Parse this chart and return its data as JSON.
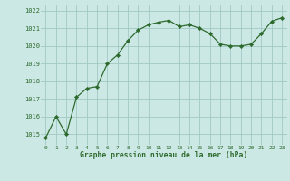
{
  "x": [
    0,
    1,
    2,
    3,
    4,
    5,
    6,
    7,
    8,
    9,
    10,
    11,
    12,
    13,
    14,
    15,
    16,
    17,
    18,
    19,
    20,
    21,
    22,
    23
  ],
  "y": [
    1014.8,
    1016.0,
    1015.0,
    1017.1,
    1017.6,
    1017.7,
    1019.0,
    1019.5,
    1020.3,
    1020.9,
    1021.2,
    1021.35,
    1021.45,
    1021.1,
    1021.2,
    1021.0,
    1020.7,
    1020.1,
    1020.0,
    1020.0,
    1020.1,
    1020.7,
    1021.4,
    1021.6
  ],
  "line_color": "#2d6a2d",
  "marker_color": "#2d6a2d",
  "bg_color": "#cce8e4",
  "grid_color": "#a0c8c4",
  "xlabel": "Graphe pression niveau de la mer (hPa)",
  "xlabel_color": "#2d6a2d",
  "tick_color": "#2d6a2d",
  "ylim_min": 1014.4,
  "ylim_max": 1022.3,
  "yticks": [
    1015,
    1016,
    1017,
    1018,
    1019,
    1020,
    1021,
    1022
  ],
  "xticks": [
    0,
    1,
    2,
    3,
    4,
    5,
    6,
    7,
    8,
    9,
    10,
    11,
    12,
    13,
    14,
    15,
    16,
    17,
    18,
    19,
    20,
    21,
    22,
    23
  ]
}
